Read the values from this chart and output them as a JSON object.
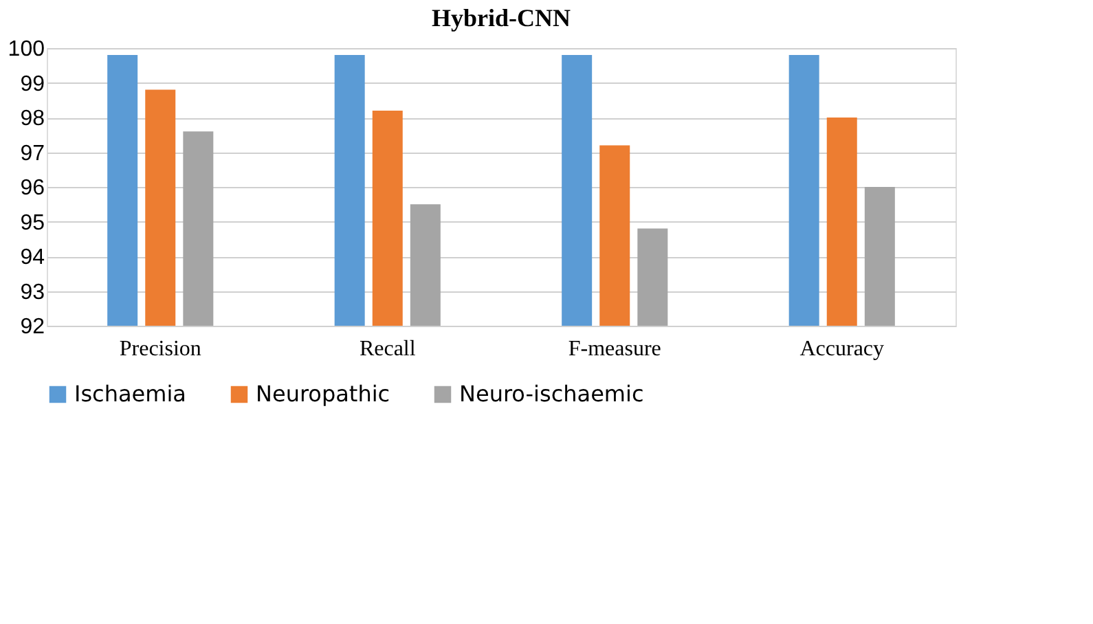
{
  "chart_data": {
    "type": "bar",
    "title": "Hybrid-CNN",
    "categories": [
      "Precision",
      "Recall",
      "F-measure",
      "Accuracy"
    ],
    "series": [
      {
        "name": "Ischaemia",
        "color": "#5b9bd5",
        "values": [
          99.8,
          99.8,
          99.8,
          99.8
        ]
      },
      {
        "name": "Neuropathic",
        "color": "#ed7d31",
        "values": [
          98.8,
          98.2,
          97.2,
          98.0
        ]
      },
      {
        "name": "Neuro-ischaemic",
        "color": "#a5a5a5",
        "values": [
          97.6,
          95.5,
          94.8,
          96.0
        ]
      }
    ],
    "ylim": [
      92,
      100
    ],
    "yticks": [
      92,
      93,
      94,
      95,
      96,
      97,
      98,
      99,
      100
    ],
    "grid": "y",
    "legend": "bottom"
  }
}
